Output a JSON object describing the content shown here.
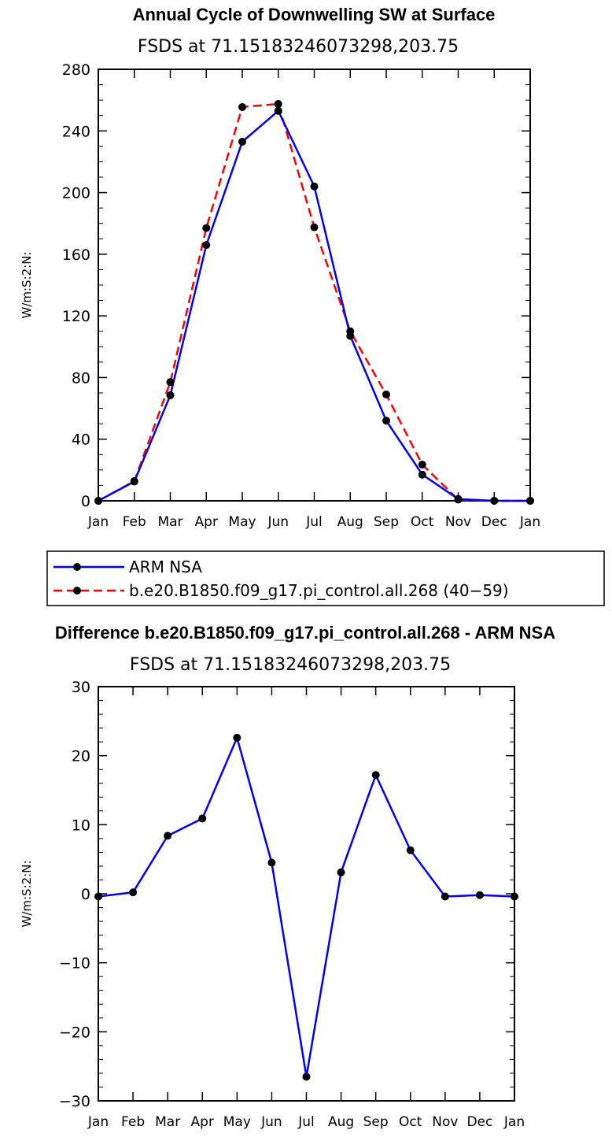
{
  "chart_data": [
    {
      "type": "line",
      "title": "Annual Cycle of Downwelling SW at Surface",
      "subtitle": "FSDS at 71.15183246073298,203.75",
      "ylabel": "W/m:S:2:N:",
      "xlabel": "",
      "categories": [
        "Jan",
        "Feb",
        "Mar",
        "Apr",
        "May",
        "Jun",
        "Jul",
        "Aug",
        "Sep",
        "Oct",
        "Nov",
        "Dec",
        "Jan"
      ],
      "ylim": [
        0,
        280
      ],
      "yticks": [
        0,
        40,
        80,
        120,
        160,
        200,
        240,
        280
      ],
      "yticks_minor_step": 10,
      "grid": false,
      "legend_position": "below",
      "series": [
        {
          "name": "ARM NSA",
          "color": "#0000ff",
          "dash": "solid",
          "values": [
            0,
            12.5,
            68.5,
            166,
            233,
            253,
            204,
            107,
            52,
            17,
            1.2,
            0,
            0
          ]
        },
        {
          "name": "b.e20.B1850.f09_g17.pi_control.all.268 (40−59)",
          "color": "#ff0000",
          "dash": "dashed",
          "values": [
            0,
            12.8,
            77,
            177,
            255.5,
            257.5,
            177.5,
            110,
            69,
            23.5,
            0.8,
            0,
            0
          ]
        }
      ]
    },
    {
      "type": "line",
      "title": "Difference b.e20.B1850.f09_g17.pi_control.all.268 - ARM NSA",
      "subtitle": "FSDS at 71.15183246073298,203.75",
      "ylabel": "W/m:S:2:N:",
      "xlabel": "",
      "categories": [
        "Jan",
        "Feb",
        "Mar",
        "Apr",
        "May",
        "Jun",
        "Jul",
        "Aug",
        "Sep",
        "Oct",
        "Nov",
        "Dec",
        "Jan"
      ],
      "ylim": [
        -30,
        30
      ],
      "yticks": [
        -30,
        -20,
        -10,
        0,
        10,
        20,
        30
      ],
      "ytick_labels": [
        "−30",
        "−20",
        "−10",
        "0",
        "10",
        "20",
        "30"
      ],
      "yticks_minor_step": 2,
      "grid": false,
      "series": [
        {
          "name": "",
          "color": "#0000ff",
          "dash": "solid",
          "values": [
            -0.4,
            0.2,
            8.4,
            10.9,
            22.6,
            4.5,
            -26.5,
            3.1,
            17.2,
            6.3,
            -0.4,
            -0.2,
            -0.4
          ]
        }
      ]
    }
  ]
}
